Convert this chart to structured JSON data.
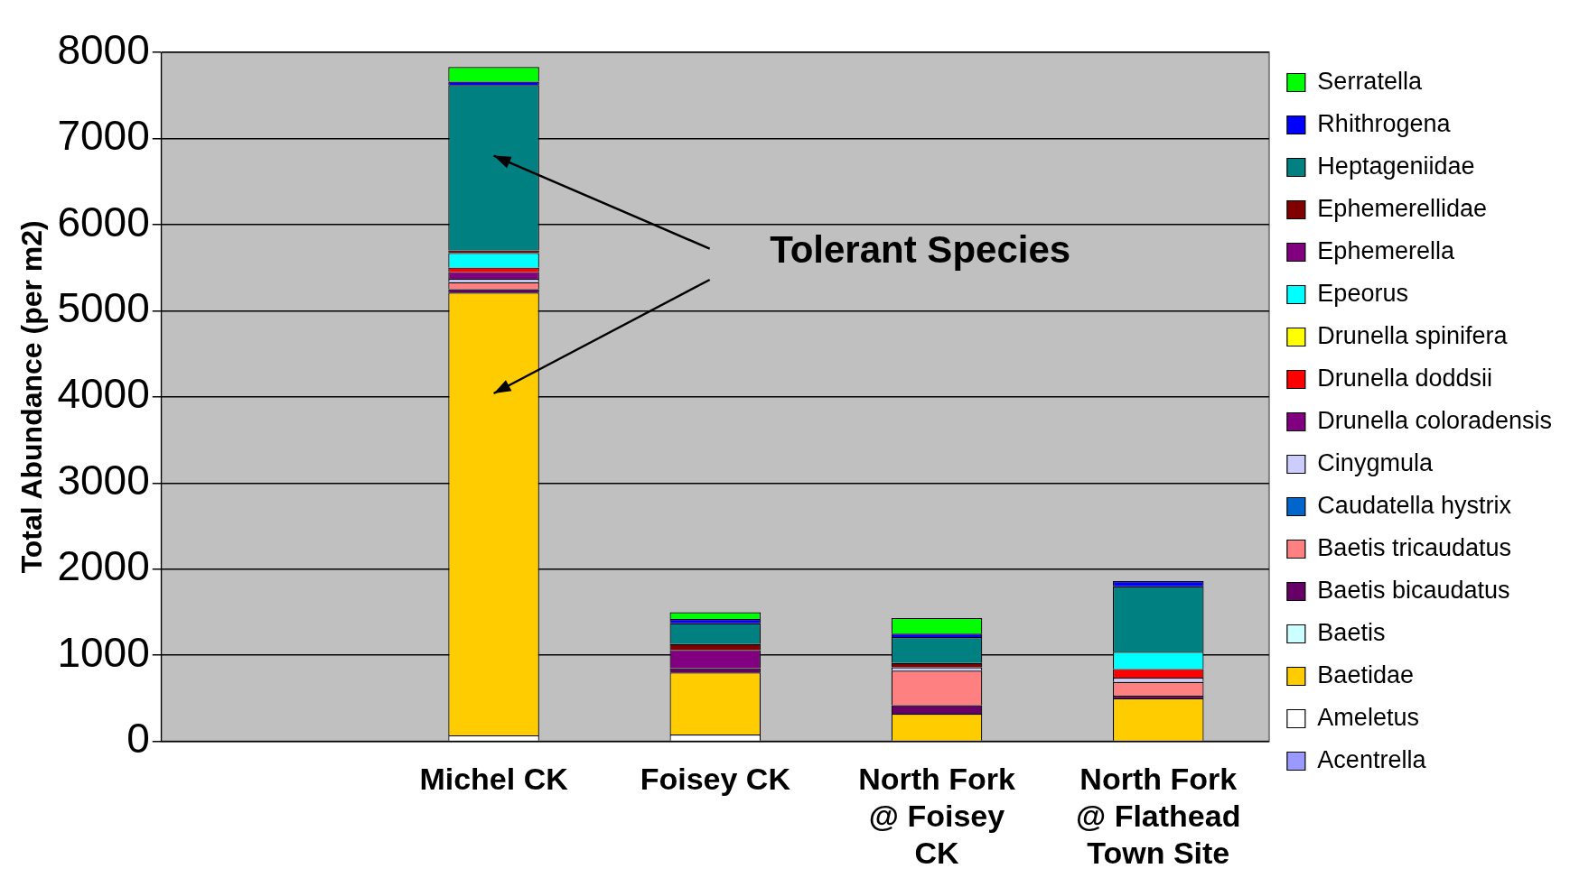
{
  "chart_data": {
    "type": "bar",
    "stacked": true,
    "ylabel": "Total Abundance (per m2)",
    "categories": [
      null,
      "Michel CK",
      "Foisey CK",
      "North Fork @ Foisey CK",
      "North Fork @ Flathead Town Site"
    ],
    "ylim": [
      0,
      8000
    ],
    "yticks": [
      0,
      1000,
      2000,
      3000,
      4000,
      5000,
      6000,
      7000,
      8000
    ],
    "grid": "y",
    "legend": "right",
    "annotations": [
      "Tolerant Species"
    ],
    "series": [
      {
        "name": "Acentrella",
        "color": "#9999ff",
        "values": [
          null,
          0,
          0,
          0,
          0
        ]
      },
      {
        "name": "Ameletus",
        "color": "#ffffff",
        "values": [
          null,
          70,
          80,
          0,
          0
        ]
      },
      {
        "name": "Baetidae",
        "color": "#ffcc00",
        "values": [
          null,
          5140,
          720,
          320,
          500
        ]
      },
      {
        "name": "Baetis",
        "color": "#ccffff",
        "values": [
          null,
          0,
          0,
          0,
          0
        ]
      },
      {
        "name": "Baetis bicaudatus",
        "color": "#660066",
        "values": [
          null,
          40,
          50,
          100,
          30
        ]
      },
      {
        "name": "Baetis tricaudatus",
        "color": "#ff8080",
        "values": [
          null,
          80,
          0,
          400,
          160
        ]
      },
      {
        "name": "Caudatella hystrix",
        "color": "#0066cc",
        "values": [
          null,
          0,
          0,
          0,
          0
        ]
      },
      {
        "name": "Cinygmula",
        "color": "#ccccff",
        "values": [
          null,
          40,
          0,
          40,
          50
        ]
      },
      {
        "name": "Drunella coloradensis",
        "color": "#800080",
        "values": [
          null,
          80,
          0,
          0,
          0
        ]
      },
      {
        "name": "Drunella doddsii",
        "color": "#ff0000",
        "values": [
          null,
          50,
          0,
          0,
          100
        ]
      },
      {
        "name": "Drunella spinifera",
        "color": "#ffff00",
        "values": [
          null,
          0,
          0,
          0,
          0
        ]
      },
      {
        "name": "Epeorus",
        "color": "#00ffff",
        "values": [
          null,
          170,
          0,
          0,
          200
        ]
      },
      {
        "name": "Ephemerella",
        "color": "#800080",
        "values": [
          null,
          0,
          210,
          0,
          0
        ]
      },
      {
        "name": "Ephemerellidae",
        "color": "#800000",
        "values": [
          null,
          30,
          70,
          50,
          0
        ]
      },
      {
        "name": "Heptageniidae",
        "color": "#008080",
        "values": [
          null,
          1920,
          240,
          300,
          760
        ]
      },
      {
        "name": "Rhithrogena",
        "color": "#0000ff",
        "values": [
          null,
          40,
          50,
          40,
          60
        ]
      },
      {
        "name": "Serratella",
        "color": "#00ff00",
        "values": [
          null,
          170,
          80,
          180,
          0
        ]
      }
    ]
  }
}
